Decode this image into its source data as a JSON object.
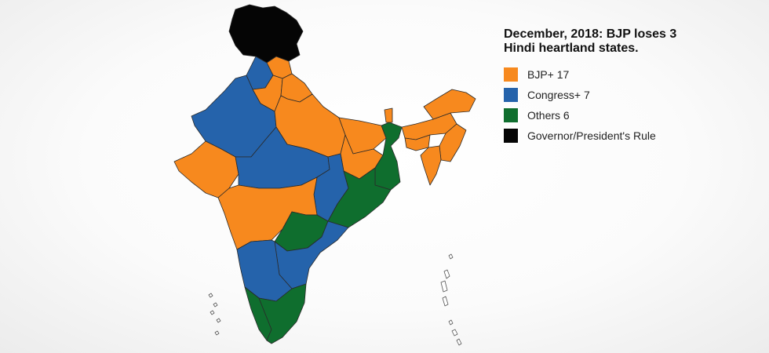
{
  "legend": {
    "title": "December, 2018: BJP loses 3 Hindi heartland states.",
    "items": [
      {
        "label": "BJP+ 17",
        "color": "#f7891e"
      },
      {
        "label": "Congress+ 7",
        "color": "#2563ab"
      },
      {
        "label": "Others 6",
        "color": "#0f6e2e"
      },
      {
        "label": "Governor/President's Rule",
        "color": "#050505"
      }
    ]
  }
}
